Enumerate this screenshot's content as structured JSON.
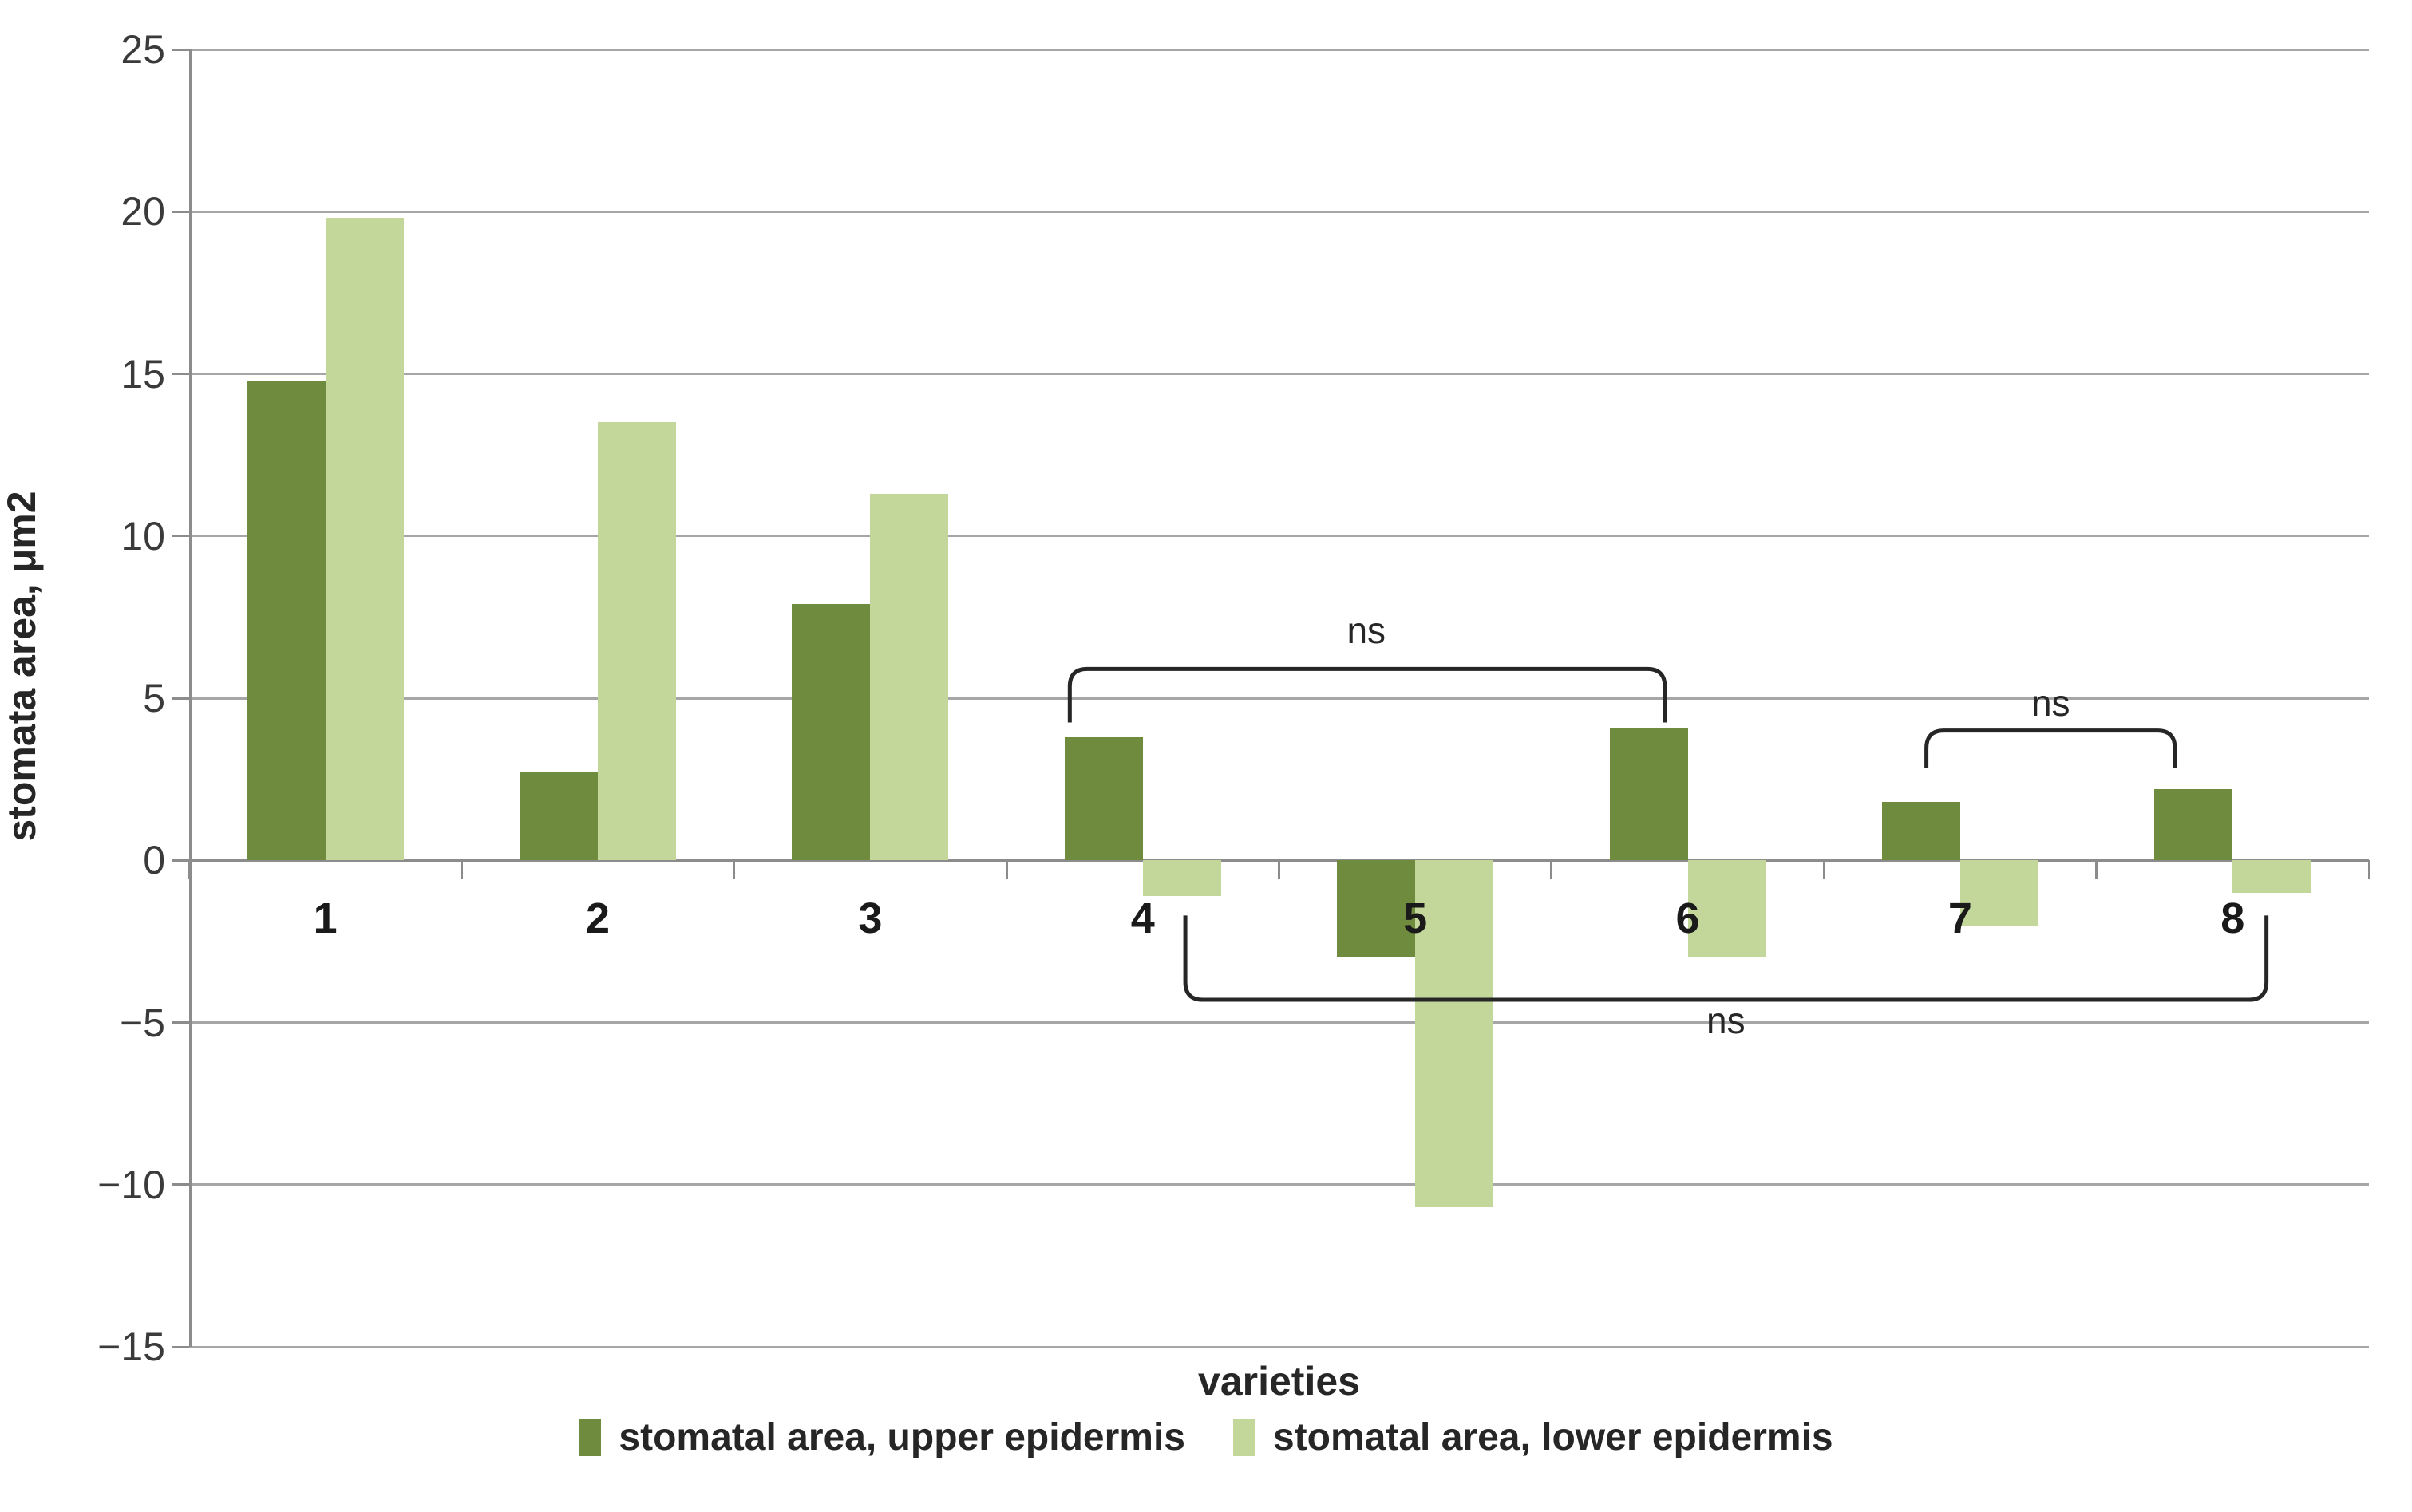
{
  "figure": {
    "y_axis_title": "stomata area, μm2",
    "x_axis_title": "varieties",
    "colors": {
      "series_upper": "#6f8b3e",
      "series_lower": "#c3d79b",
      "gridline": "#a6a6a6",
      "axis": "#8c8c8c",
      "bracket": "#262626",
      "text": "#262626"
    },
    "legend": [
      {
        "label": "stomatal area, upper epidermis",
        "color": "#6f8b3e"
      },
      {
        "label": "stomatal area, lower epidermis",
        "color": "#c3d79b"
      }
    ]
  },
  "chart_data": {
    "type": "bar",
    "title": "",
    "xlabel": "varieties",
    "ylabel": "stomata area, μm2",
    "categories": [
      "1",
      "2",
      "3",
      "4",
      "5",
      "6",
      "7",
      "8"
    ],
    "series": [
      {
        "name": "stomatal area, upper epidermis",
        "color": "#6f8b3e",
        "values": [
          14.8,
          2.7,
          7.9,
          3.8,
          -3.0,
          4.1,
          1.8,
          2.2
        ]
      },
      {
        "name": "stomatal area, lower epidermis",
        "color": "#c3d79b",
        "values": [
          19.8,
          13.5,
          11.3,
          -1.1,
          -10.7,
          -3.0,
          -2.0,
          -1.0
        ]
      }
    ],
    "ylim": [
      -15,
      25
    ],
    "ytick_step": 5,
    "grid": true,
    "legend_position": "bottom",
    "annotations": [
      {
        "label": "ns",
        "x1": 0.404,
        "x2": 0.677,
        "line_value": 5.9,
        "tip_value": 4.25,
        "label_x": 0.54,
        "label_y": 7.1
      },
      {
        "label": "ns",
        "x1": 0.797,
        "x2": 0.911,
        "line_value": 4.0,
        "tip_value": 2.85,
        "label_x": 0.854,
        "label_y": 4.85
      },
      {
        "label": "ns",
        "x1": 0.457,
        "x2": 0.953,
        "line_value": -4.3,
        "tip_value": -1.7,
        "label_x": 0.705,
        "label_y": -4.95
      }
    ]
  }
}
